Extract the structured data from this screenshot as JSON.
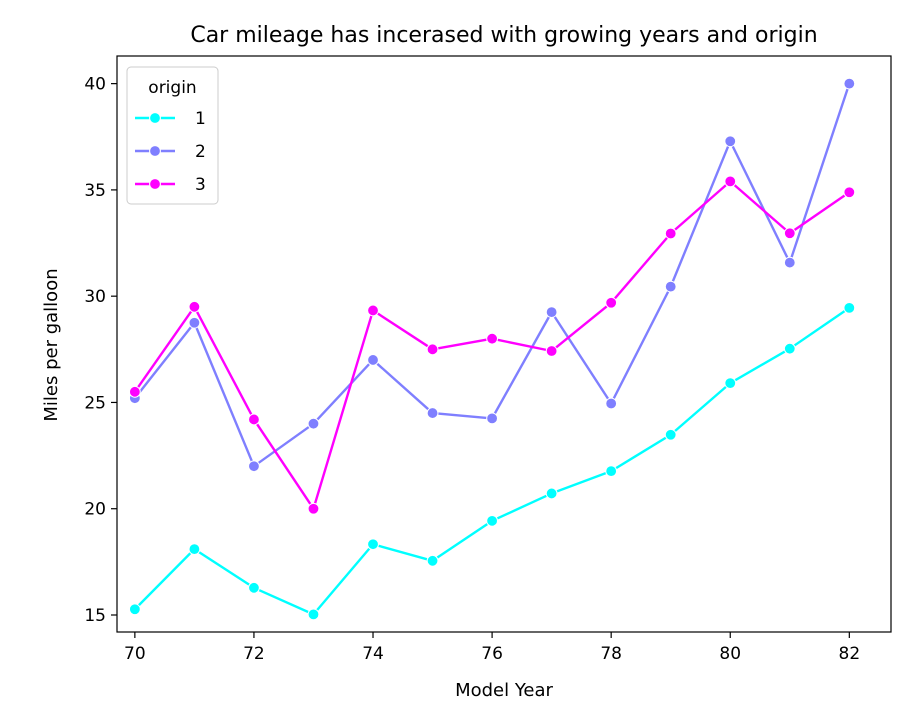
{
  "chart_data": {
    "type": "line",
    "title": "Car mileage has incerased with growing years and origin",
    "xlabel": "Model Year",
    "ylabel": "Miles per galloon",
    "x": [
      70,
      71,
      72,
      73,
      74,
      75,
      76,
      77,
      78,
      79,
      80,
      81,
      82
    ],
    "xticks": [
      70,
      72,
      74,
      76,
      78,
      80,
      82
    ],
    "yticks": [
      15,
      20,
      25,
      30,
      35,
      40
    ],
    "xlim": [
      69.7,
      82.7
    ],
    "ylim": [
      14.2,
      41.3
    ],
    "legend": {
      "title": "origin",
      "placement": "upper left"
    },
    "series": [
      {
        "name": "1",
        "color": "#00ffff",
        "values": [
          15.27,
          18.1,
          16.28,
          15.03,
          18.33,
          17.55,
          19.43,
          20.72,
          21.77,
          23.48,
          25.91,
          27.53,
          29.45
        ]
      },
      {
        "name": "2",
        "color": "#7f7fff",
        "values": [
          25.2,
          28.75,
          22.0,
          24.0,
          27.0,
          24.5,
          24.25,
          29.25,
          24.95,
          30.45,
          37.29,
          31.58,
          40.0
        ]
      },
      {
        "name": "3",
        "color": "#ff00ff",
        "values": [
          25.5,
          29.5,
          24.2,
          20.0,
          29.33,
          27.5,
          28.0,
          27.42,
          29.69,
          32.95,
          35.4,
          32.96,
          34.89
        ]
      }
    ]
  }
}
